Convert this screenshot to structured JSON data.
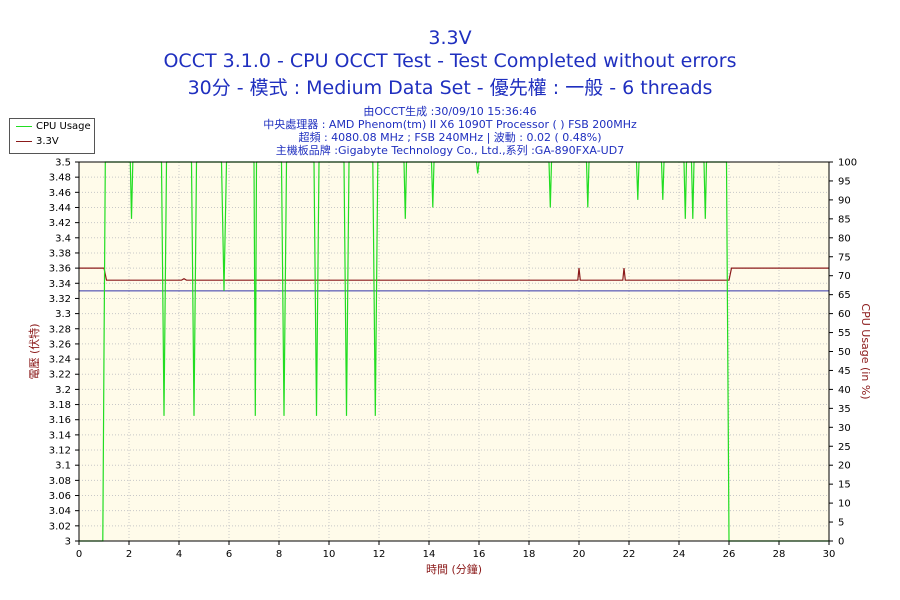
{
  "header": {
    "line1": "3.3V",
    "line2": "OCCT 3.1.0 - CPU OCCT Test - Test Completed without errors",
    "line3": "30分 - 模式 : Medium Data Set - 優先權 : 一般 - 6 threads"
  },
  "info": {
    "generated": "由OCCT生成 :30/09/10 15:36:46",
    "cpu": "中央處理器 : AMD Phenom(tm) II X6 1090T Processor (  ) FSB 200MHz",
    "clock": "超頻 : 4080.08 MHz ; FSB 240MHz | 波動 : 0.02 ( 0.48%)",
    "board": "主機板品牌 :Gigabyte Technology Co., Ltd.,系列 :GA-890FXA-UD7"
  },
  "legend": [
    {
      "label": "CPU Usage",
      "color": "#22dd22"
    },
    {
      "label": "3.3V",
      "color": "#8b1a1a"
    }
  ],
  "chart_data": {
    "type": "line",
    "xlabel": "時間 (分鐘)",
    "ylabel_left": "電壓 (伏特)",
    "ylabel_right": "CPU Usage (in %)",
    "xlim": [
      0,
      30
    ],
    "ylim_left": [
      3.0,
      3.5
    ],
    "ylim_right": [
      0,
      100
    ],
    "x_ticks": [
      0,
      2,
      4,
      6,
      8,
      10,
      12,
      14,
      16,
      18,
      20,
      22,
      24,
      26,
      28,
      30
    ],
    "y_left_ticks": [
      "3",
      "3.02",
      "3.04",
      "3.06",
      "3.08",
      "3.1",
      "3.12",
      "3.14",
      "3.16",
      "3.18",
      "3.2",
      "3.22",
      "3.24",
      "3.26",
      "3.28",
      "3.3",
      "3.32",
      "3.34",
      "3.36",
      "3.38",
      "3.4",
      "3.42",
      "3.44",
      "3.46",
      "3.48",
      "3.5"
    ],
    "y_right_ticks": [
      0,
      5,
      10,
      15,
      20,
      25,
      30,
      35,
      40,
      45,
      50,
      55,
      60,
      65,
      70,
      75,
      80,
      85,
      90,
      95,
      100
    ],
    "grid": true,
    "background": "#fffbea",
    "reference_line": {
      "y": 3.33,
      "color": "#3333aa"
    },
    "series": [
      {
        "name": "3.3V",
        "axis": "left",
        "color": "#8b1a1a",
        "x": [
          0,
          1.0,
          1.1,
          4.1,
          4.2,
          4.3,
          19.95,
          20.0,
          20.05,
          21.75,
          21.8,
          21.85,
          26.0,
          26.1,
          30
        ],
        "y": [
          3.36,
          3.36,
          3.344,
          3.344,
          3.346,
          3.344,
          3.344,
          3.36,
          3.344,
          3.344,
          3.36,
          3.344,
          3.344,
          3.36,
          3.36
        ]
      },
      {
        "name": "CPU Usage",
        "axis": "right",
        "color": "#22dd22",
        "x": [
          0,
          0.95,
          1.0,
          1.05,
          1.15,
          2.05,
          2.1,
          2.15,
          3.3,
          3.4,
          3.5,
          4.5,
          4.6,
          4.7,
          5.7,
          5.8,
          5.9,
          7.0,
          7.05,
          7.1,
          8.1,
          8.2,
          8.3,
          9.4,
          9.5,
          9.6,
          10.6,
          10.7,
          10.8,
          11.75,
          11.85,
          11.95,
          13.0,
          13.05,
          13.1,
          14.1,
          14.15,
          14.2,
          15.9,
          15.95,
          16.0,
          18.8,
          18.85,
          18.9,
          20.3,
          20.35,
          20.4,
          22.3,
          22.35,
          22.4,
          23.3,
          23.35,
          23.4,
          24.2,
          24.25,
          24.3,
          24.5,
          24.55,
          24.6,
          25.0,
          25.05,
          25.1,
          25.9,
          26.0,
          26.05,
          30
        ],
        "y": [
          0,
          0,
          50,
          100,
          100,
          100,
          85,
          100,
          100,
          33,
          100,
          100,
          33,
          100,
          100,
          66,
          100,
          100,
          33,
          100,
          100,
          33,
          100,
          100,
          33,
          100,
          100,
          33,
          100,
          100,
          33,
          100,
          100,
          85,
          100,
          100,
          88,
          100,
          100,
          97,
          100,
          100,
          88,
          100,
          100,
          88,
          100,
          100,
          90,
          100,
          100,
          90,
          100,
          100,
          85,
          100,
          100,
          85,
          100,
          100,
          85,
          100,
          100,
          0,
          0,
          0
        ]
      }
    ]
  }
}
